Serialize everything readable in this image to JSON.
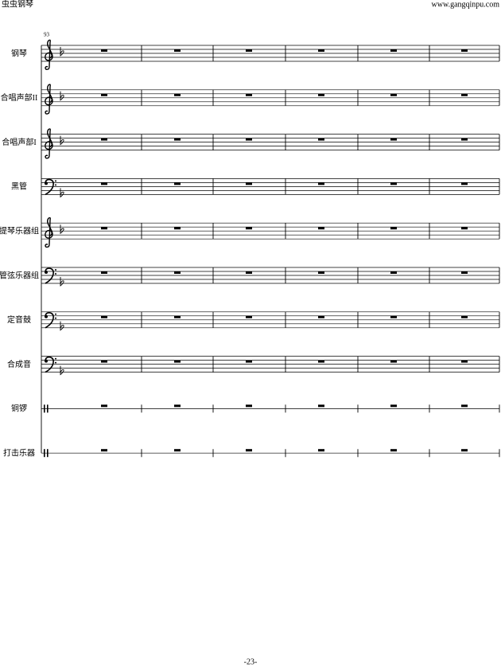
{
  "header": {
    "left": "虫虫钢琴",
    "right": "www.gangqinpu.com"
  },
  "measure_number": "93",
  "staves": [
    {
      "name": "钢琴",
      "clef": "treble"
    },
    {
      "name": "合唱声部II",
      "clef": "treble"
    },
    {
      "name": "合唱声部I",
      "clef": "treble"
    },
    {
      "name": "黑管",
      "clef": "bass"
    },
    {
      "name": "提琴乐器组",
      "clef": "treble"
    },
    {
      "name": "管弦乐器组",
      "clef": "bass"
    },
    {
      "name": "定音鼓",
      "clef": "bass"
    },
    {
      "name": "合成音",
      "clef": "bass"
    },
    {
      "name": "铜锣",
      "clef": "percussion"
    },
    {
      "name": "打击乐器",
      "clef": "percussion"
    }
  ],
  "footer": {
    "page": "-23-"
  }
}
